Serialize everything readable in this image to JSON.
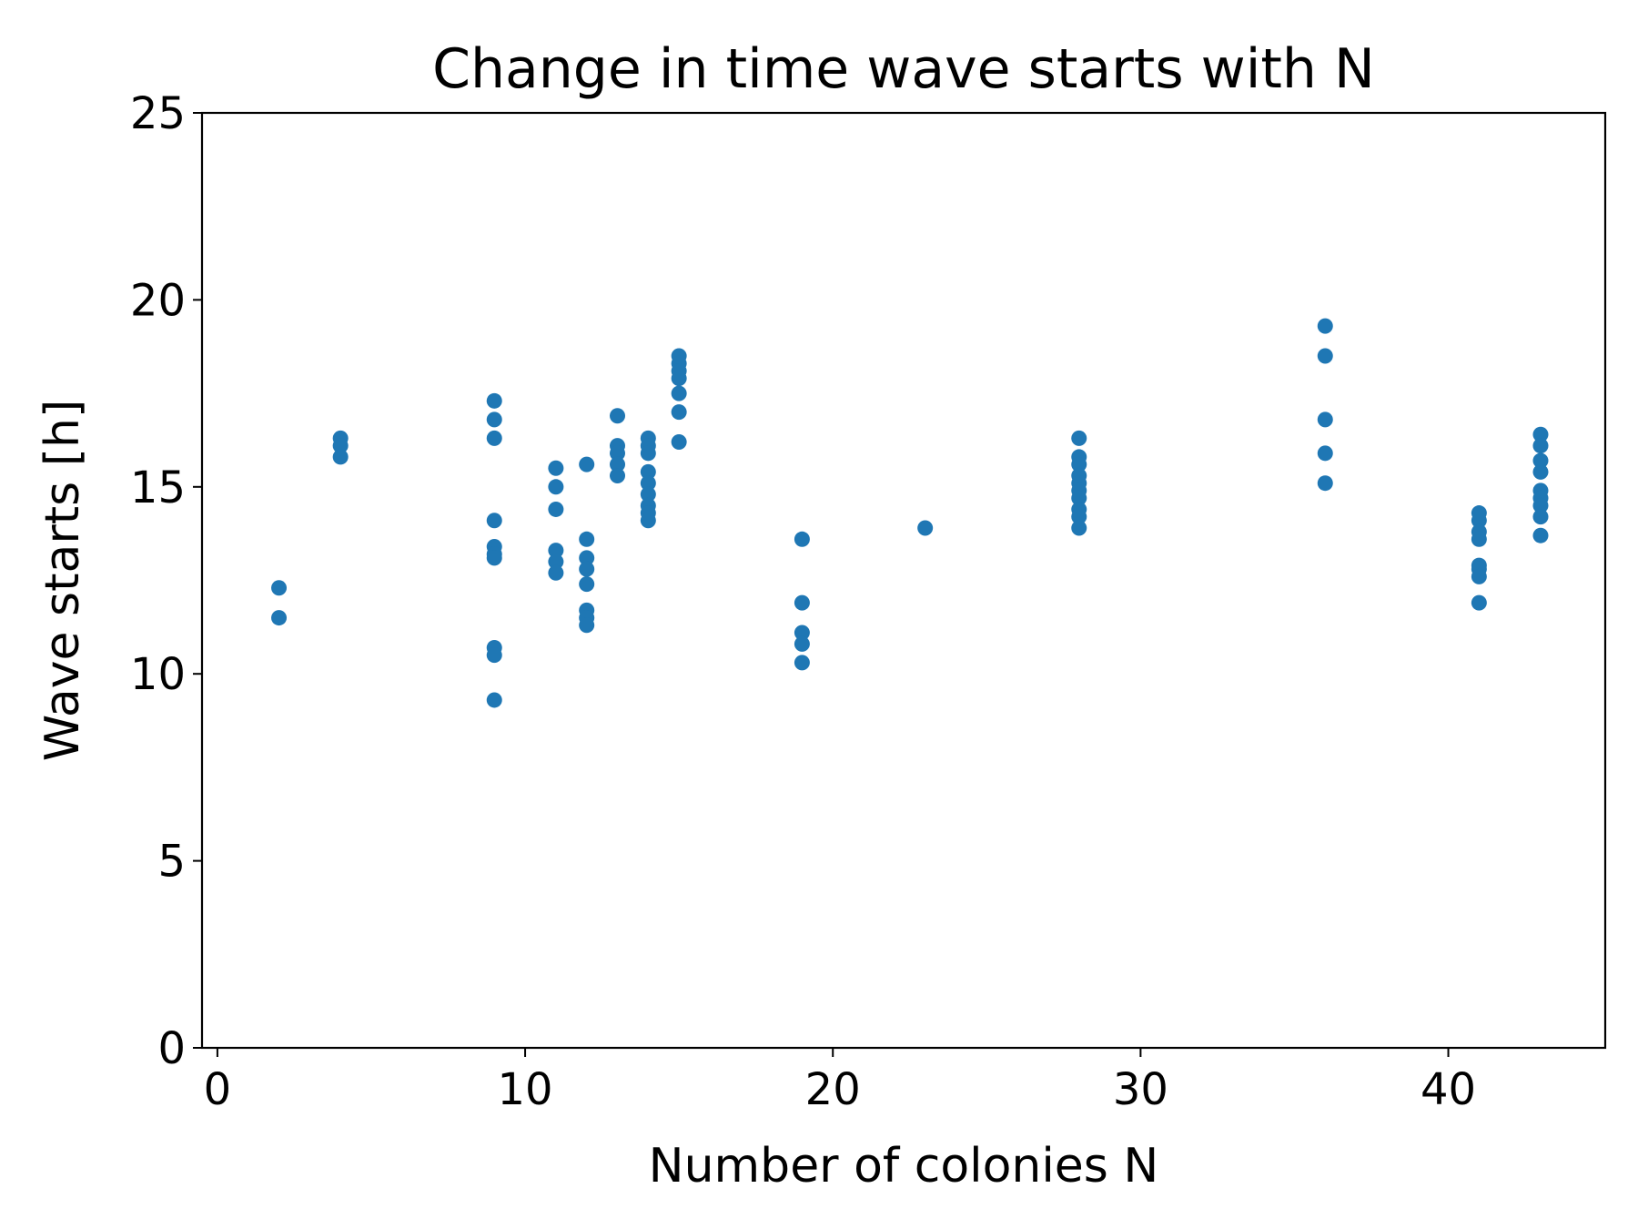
{
  "chart_data": {
    "type": "scatter",
    "title": "Change in time wave starts with N",
    "xlabel": "Number of colonies N",
    "ylabel": "Wave starts [h]",
    "xlim": [
      -0.5,
      45.1
    ],
    "ylim": [
      0,
      25
    ],
    "xticks": [
      0,
      10,
      20,
      30,
      40
    ],
    "yticks": [
      0,
      5,
      10,
      15,
      20,
      25
    ],
    "grid": false,
    "legend": false,
    "marker_color": "#1f77b4",
    "points": [
      [
        2,
        12.3
      ],
      [
        2,
        11.5
      ],
      [
        4,
        16.3
      ],
      [
        4,
        16.1
      ],
      [
        4,
        15.8
      ],
      [
        9,
        17.3
      ],
      [
        9,
        16.8
      ],
      [
        9,
        16.3
      ],
      [
        9,
        14.1
      ],
      [
        9,
        13.4
      ],
      [
        9,
        13.2
      ],
      [
        9,
        13.1
      ],
      [
        9,
        10.7
      ],
      [
        9,
        10.5
      ],
      [
        9,
        9.3
      ],
      [
        11,
        15.5
      ],
      [
        11,
        15.0
      ],
      [
        11,
        14.4
      ],
      [
        11,
        13.3
      ],
      [
        11,
        13.0
      ],
      [
        11,
        12.7
      ],
      [
        12,
        15.6
      ],
      [
        12,
        13.6
      ],
      [
        12,
        13.1
      ],
      [
        12,
        12.8
      ],
      [
        12,
        12.4
      ],
      [
        12,
        11.7
      ],
      [
        12,
        11.5
      ],
      [
        12,
        11.3
      ],
      [
        13,
        16.9
      ],
      [
        13,
        16.1
      ],
      [
        13,
        15.9
      ],
      [
        13,
        15.6
      ],
      [
        13,
        15.3
      ],
      [
        14,
        16.3
      ],
      [
        14,
        16.1
      ],
      [
        14,
        15.9
      ],
      [
        14,
        15.4
      ],
      [
        14,
        15.1
      ],
      [
        14,
        14.8
      ],
      [
        14,
        14.5
      ],
      [
        14,
        14.3
      ],
      [
        14,
        14.1
      ],
      [
        15,
        18.5
      ],
      [
        15,
        18.3
      ],
      [
        15,
        18.1
      ],
      [
        15,
        17.9
      ],
      [
        15,
        17.5
      ],
      [
        15,
        17.0
      ],
      [
        15,
        16.2
      ],
      [
        19,
        13.6
      ],
      [
        19,
        11.9
      ],
      [
        19,
        11.1
      ],
      [
        19,
        10.8
      ],
      [
        19,
        10.3
      ],
      [
        23,
        13.9
      ],
      [
        28,
        16.3
      ],
      [
        28,
        15.8
      ],
      [
        28,
        15.6
      ],
      [
        28,
        15.3
      ],
      [
        28,
        15.1
      ],
      [
        28,
        14.9
      ],
      [
        28,
        14.7
      ],
      [
        28,
        14.4
      ],
      [
        28,
        14.2
      ],
      [
        28,
        13.9
      ],
      [
        36,
        19.3
      ],
      [
        36,
        18.5
      ],
      [
        36,
        16.8
      ],
      [
        36,
        15.9
      ],
      [
        36,
        15.1
      ],
      [
        41,
        14.3
      ],
      [
        41,
        14.1
      ],
      [
        41,
        13.8
      ],
      [
        41,
        13.6
      ],
      [
        41,
        12.9
      ],
      [
        41,
        12.8
      ],
      [
        41,
        12.6
      ],
      [
        41,
        11.9
      ],
      [
        43,
        16.4
      ],
      [
        43,
        16.1
      ],
      [
        43,
        15.7
      ],
      [
        43,
        15.4
      ],
      [
        43,
        14.9
      ],
      [
        43,
        14.7
      ],
      [
        43,
        14.5
      ],
      [
        43,
        14.2
      ],
      [
        43,
        13.7
      ]
    ]
  }
}
